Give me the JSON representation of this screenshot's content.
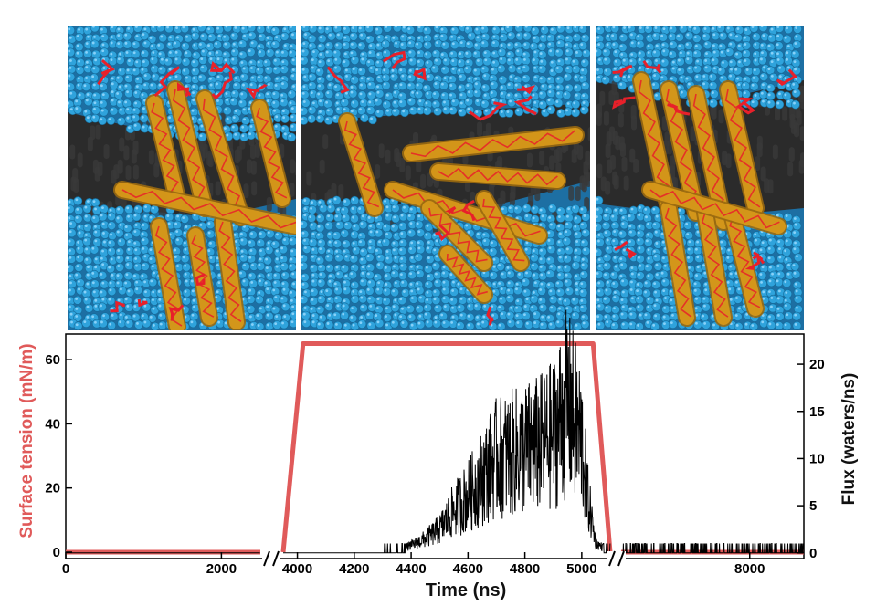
{
  "panels": [
    {
      "name": "protein-in-membrane-start"
    },
    {
      "name": "protein-in-membrane-tension"
    },
    {
      "name": "protein-in-membrane-end"
    }
  ],
  "colors": {
    "water": "#2fa3dc",
    "lipid": "#2b2b2b",
    "helix": "#d99a1a",
    "backbone": "#e8202a",
    "tension": "#e05a5a",
    "flux": "#000000"
  },
  "chart_data": {
    "type": "line",
    "xlabel": "Time (ns)",
    "ylabel_left": "Surface tension (mN/m)",
    "ylabel_right": "Flux (waters/ns)",
    "axis_break": "yes",
    "segments": [
      {
        "xlim": [
          0,
          2500
        ],
        "ticks": [
          "0",
          "2000"
        ],
        "tick_values": [
          0,
          2000
        ]
      },
      {
        "xlim": [
          3950,
          5100
        ],
        "ticks": [
          "4000",
          "4200",
          "4400",
          "4600",
          "4800",
          "5000"
        ],
        "tick_values": [
          4000,
          4200,
          4400,
          4600,
          4800,
          5000
        ]
      },
      {
        "xlim": [
          5150,
          9200
        ],
        "ticks": [
          "8000"
        ],
        "tick_values": [
          8000
        ]
      }
    ],
    "left_axis": {
      "ylim": [
        -2,
        68
      ],
      "ticks": [
        "0",
        "20",
        "40",
        "60"
      ],
      "tick_values": [
        0,
        20,
        40,
        60
      ]
    },
    "right_axis": {
      "ylim": [
        -0.6,
        23.2
      ],
      "ticks": [
        "0",
        "5",
        "10",
        "15",
        "20"
      ],
      "tick_values": [
        0,
        5,
        10,
        15,
        20
      ]
    },
    "series": [
      {
        "axis": "left",
        "color": "#e05a5a",
        "points": [
          [
            0,
            0
          ],
          [
            2500,
            0
          ],
          [
            3950,
            0
          ],
          [
            4020,
            65
          ],
          [
            5040,
            65
          ],
          [
            5100,
            0
          ],
          [
            5150,
            0
          ],
          [
            9200,
            0
          ]
        ]
      },
      {
        "axis": "right",
        "color": "#000000",
        "points": [
          [
            0,
            0
          ],
          [
            2500,
            0
          ],
          [
            3950,
            0
          ],
          [
            4050,
            0
          ],
          [
            4300,
            0
          ],
          [
            4350,
            0.3
          ],
          [
            4400,
            0.8
          ],
          [
            4450,
            1.5
          ],
          [
            4500,
            2.5
          ],
          [
            4550,
            4.5
          ],
          [
            4600,
            6
          ],
          [
            4650,
            8
          ],
          [
            4700,
            10
          ],
          [
            4750,
            10.5
          ],
          [
            4800,
            11
          ],
          [
            4850,
            11.5
          ],
          [
            4900,
            12.5
          ],
          [
            4950,
            16
          ],
          [
            5000,
            12
          ],
          [
            5020,
            6
          ],
          [
            5050,
            1
          ],
          [
            5100,
            0.2
          ],
          [
            5150,
            0.2
          ],
          [
            9200,
            0.2
          ]
        ]
      }
    ]
  }
}
